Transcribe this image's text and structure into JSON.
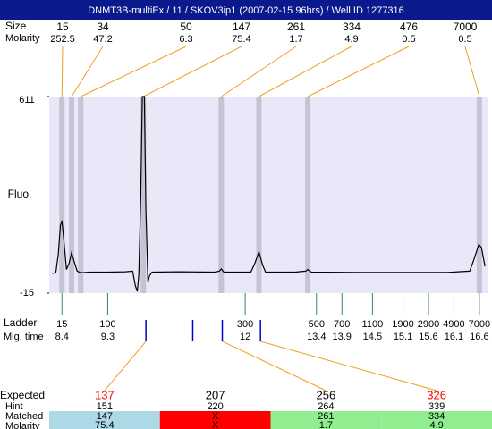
{
  "header": {
    "title": "DNMT3B-multiEx / 11 / SKOV3ip1 (2007-02-15 96hrs) / Well ID 1277316"
  },
  "peaks": {
    "size_label": "Size",
    "molarity_label": "Molarity",
    "items": [
      {
        "size": 15,
        "molarity": 252.5,
        "time": 8.4
      },
      {
        "size": 34,
        "molarity": 47.2,
        "time": 8.59
      },
      {
        "size": 50,
        "molarity": 6.3,
        "time": 8.77
      },
      {
        "size": 147,
        "molarity": 75.4,
        "time": 10.0
      },
      {
        "size": 261,
        "molarity": 1.7,
        "time": 11.53
      },
      {
        "size": 334,
        "molarity": 4.9,
        "time": 12.27
      },
      {
        "size": 476,
        "molarity": 0.5,
        "time": 13.23
      },
      {
        "size": 7000,
        "molarity": 0.5,
        "time": 16.6
      }
    ]
  },
  "plot": {
    "y_label": "Fluo.",
    "ylim": [
      -15,
      611
    ],
    "yticks": [
      -15,
      611
    ],
    "xlim": [
      8.15,
      16.76
    ],
    "trace": {
      "x": [
        8.21,
        8.28,
        8.33,
        8.37,
        8.4,
        8.44,
        8.49,
        8.54,
        8.59,
        8.65,
        8.7,
        8.77,
        8.94,
        9.3,
        9.65,
        9.79,
        9.84,
        9.88,
        9.91,
        9.95,
        9.98,
        10.02,
        10.05,
        10.09,
        10.12,
        10.17,
        10.7,
        11.4,
        11.49,
        11.53,
        11.58,
        12.11,
        12.19,
        12.27,
        12.34,
        12.4,
        12.98,
        13.19,
        13.23,
        13.3,
        14.21,
        15.97,
        16.41,
        16.49,
        16.59,
        16.64,
        16.71
      ],
      "y": [
        48,
        50,
        110,
        200,
        216,
        150,
        60,
        80,
        114,
        80,
        55,
        50,
        52,
        52,
        53,
        55,
        10,
        -10,
        45,
        300,
        611,
        611,
        250,
        20,
        40,
        52,
        53,
        52,
        55,
        62,
        52,
        52,
        80,
        117,
        75,
        52,
        52,
        55,
        60,
        52,
        51,
        51,
        55,
        90,
        140,
        130,
        70
      ]
    }
  },
  "ladder": {
    "label": "Ladder",
    "time_label": "Mig. time",
    "sizes": [
      15,
      100,
      300,
      500,
      700,
      1100,
      1900,
      2900,
      4900,
      7000
    ],
    "times": [
      8.4,
      9.3,
      12,
      13.4,
      13.9,
      14.5,
      15.1,
      15.6,
      16.1,
      16.6
    ]
  },
  "expected": {
    "label": "Expected",
    "hint_label": "Hint",
    "matched_label": "Matched",
    "molarity_label": "Molarity",
    "columns": [
      {
        "expected": 137,
        "color": "#ff0000",
        "time": 10.05,
        "hint": 151,
        "matched": 147,
        "molarity": 75.4,
        "status_color": "#add8e6"
      },
      {
        "expected": 207,
        "color": "#000000",
        "time": 10.97,
        "hint": 220,
        "matched": "X",
        "molarity": "X",
        "status_color": "#ff0000"
      },
      {
        "expected": 256,
        "color": "#000000",
        "time": 11.55,
        "hint": 264,
        "matched": 261,
        "molarity": 1.7,
        "status_color": "#90ee90"
      },
      {
        "expected": 326,
        "color": "#ff0000",
        "time": 12.3,
        "hint": 339,
        "matched": 334,
        "molarity": 4.9,
        "status_color": "#90ee90"
      }
    ]
  }
}
